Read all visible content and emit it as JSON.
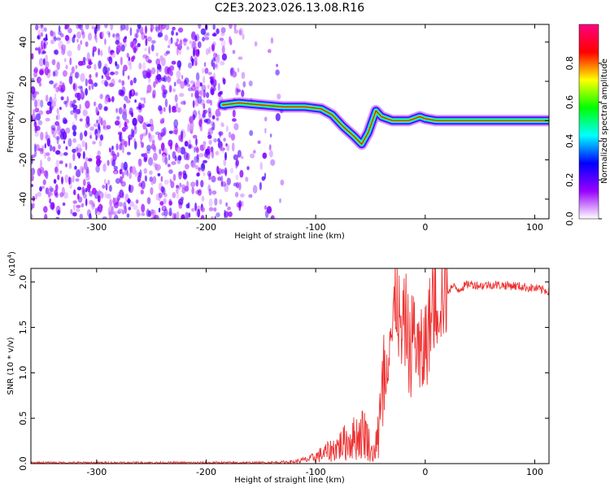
{
  "title": "C2E3.2023.026.13.08.R16",
  "chart_data": [
    {
      "type": "heatmap",
      "xlabel": "Height of straight line (km)",
      "ylabel": "Frequency (Hz)",
      "xlim": [
        -360,
        113
      ],
      "ylim": [
        -50,
        49
      ],
      "xticks": [
        -300,
        -200,
        -100,
        0,
        100
      ],
      "yticks": [
        -40,
        -20,
        0,
        20,
        40
      ],
      "colorbar": {
        "label": "Normalized spectral amplitude",
        "range": [
          0,
          1
        ],
        "ticks": [
          0.0,
          0.2,
          0.4,
          0.6,
          0.8
        ],
        "colors": [
          "#ffffff",
          "#9900ff",
          "#0000ff",
          "#00ffff",
          "#00ff00",
          "#ffff00",
          "#ff0000",
          "#ff0080"
        ]
      },
      "features": {
        "noise_region_x": [
          -360,
          -130
        ],
        "signal_trace": [
          {
            "x": -185,
            "y": 8
          },
          {
            "x": -170,
            "y": 9
          },
          {
            "x": -150,
            "y": 8
          },
          {
            "x": -130,
            "y": 7
          },
          {
            "x": -110,
            "y": 7
          },
          {
            "x": -95,
            "y": 6
          },
          {
            "x": -85,
            "y": 3
          },
          {
            "x": -75,
            "y": -3
          },
          {
            "x": -65,
            "y": -8
          },
          {
            "x": -58,
            "y": -12
          },
          {
            "x": -52,
            "y": -6
          },
          {
            "x": -45,
            "y": 5
          },
          {
            "x": -40,
            "y": 2
          },
          {
            "x": -30,
            "y": 0
          },
          {
            "x": -15,
            "y": 0
          },
          {
            "x": -5,
            "y": 2
          },
          {
            "x": 0,
            "y": 1
          },
          {
            "x": 10,
            "y": 0
          },
          {
            "x": 113,
            "y": 0
          }
        ]
      }
    },
    {
      "type": "line",
      "xlabel": "Height of straight line (km)",
      "ylabel": "SNR (10 * v/v)",
      "yscale_note": "(x10",
      "yscale_exp": "4",
      "xlim": [
        -360,
        113
      ],
      "ylim": [
        0,
        2.15
      ],
      "xticks": [
        -300,
        -200,
        -100,
        0,
        100
      ],
      "yticks": [
        0.0,
        0.5,
        1.0,
        1.5,
        2.0
      ],
      "color": "#ee3333",
      "series": [
        {
          "x": [
            -360,
            -300,
            -200,
            -150,
            -120,
            -105,
            -95,
            -85,
            -75,
            -65,
            -55,
            -48,
            -42,
            -38,
            -33,
            -30,
            -26,
            -22,
            -18,
            -14,
            -10,
            -5,
            0,
            5,
            10,
            15,
            20,
            25,
            30,
            40,
            50,
            60,
            80,
            100,
            113
          ],
          "y": [
            0.01,
            0.01,
            0.01,
            0.01,
            0.02,
            0.05,
            0.1,
            0.15,
            0.22,
            0.28,
            0.35,
            0.1,
            0.3,
            0.8,
            1.5,
            1.4,
            1.9,
            1.3,
            1.6,
            1.2,
            1.5,
            1.1,
            1.3,
            1.6,
            1.8,
            1.85,
            1.9,
            1.95,
            1.92,
            1.98,
            1.96,
            1.97,
            1.96,
            1.93,
            1.9
          ]
        }
      ]
    }
  ]
}
